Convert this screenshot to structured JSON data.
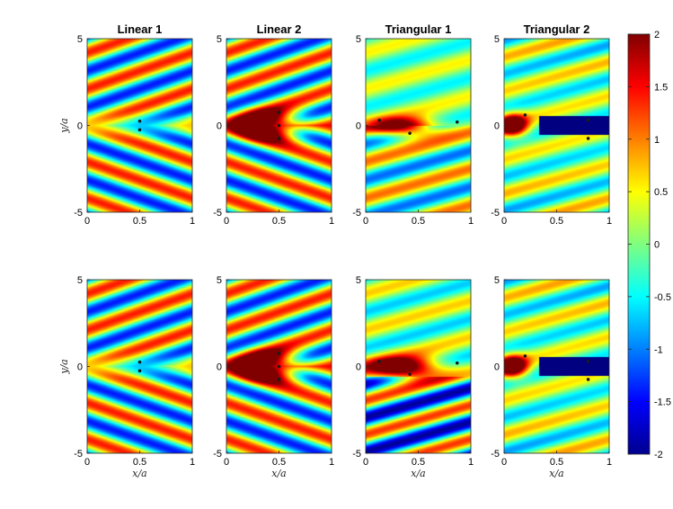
{
  "colors": {
    "colormap": "jet",
    "stop_dark_blue": "#00008f",
    "stop_blue": "#0000ff",
    "stop_cyan": "#00ffff",
    "stop_yellow": "#ffff00",
    "stop_red": "#ff0000",
    "stop_dark_red": "#800000",
    "marker": "#1a1a1a"
  },
  "chart_data": [
    {
      "type": "heatmap",
      "title": "Linear 1",
      "row": 1,
      "xlabel": "",
      "ylabel": "y/a",
      "xlim": [
        0,
        1
      ],
      "ylim": [
        -5,
        5
      ],
      "xticks": [
        "0",
        "0.5",
        "1"
      ],
      "yticks": [
        "-5",
        "0",
        "5"
      ],
      "clim": [
        -2,
        2
      ],
      "points": [
        [
          0.5,
          0.25
        ],
        [
          0.5,
          -0.25
        ]
      ]
    },
    {
      "type": "heatmap",
      "title": "Linear 2",
      "row": 1,
      "xlabel": "",
      "ylabel": "",
      "xlim": [
        0,
        1
      ],
      "ylim": [
        -5,
        5
      ],
      "xticks": [
        "0",
        "0.5",
        "1"
      ],
      "yticks": [
        "-5",
        "0",
        "5"
      ],
      "clim": [
        -2,
        2
      ],
      "points": [
        [
          0.5,
          0.75
        ],
        [
          0.5,
          0
        ],
        [
          0.5,
          -0.75
        ]
      ]
    },
    {
      "type": "heatmap",
      "title": "Triangular 1",
      "row": 1,
      "xlabel": "",
      "ylabel": "",
      "xlim": [
        0,
        1
      ],
      "ylim": [
        -5,
        5
      ],
      "xticks": [
        "0",
        "0.5",
        "1"
      ],
      "yticks": [
        "-5",
        "0",
        "5"
      ],
      "clim": [
        -2,
        2
      ],
      "points": [
        [
          0.13,
          0.3
        ],
        [
          0.42,
          -0.45
        ],
        [
          0.87,
          0.2
        ]
      ]
    },
    {
      "type": "heatmap",
      "title": "Triangular 2",
      "row": 1,
      "xlabel": "",
      "ylabel": "",
      "xlim": [
        0,
        1
      ],
      "ylim": [
        -5,
        5
      ],
      "xticks": [
        "0",
        "0.5",
        "1"
      ],
      "yticks": [
        "-5",
        "0",
        "5"
      ],
      "clim": [
        -2,
        2
      ],
      "points": [
        [
          0.2,
          0.6
        ],
        [
          0.8,
          0.3
        ],
        [
          0.8,
          -0.75
        ]
      ]
    },
    {
      "type": "heatmap",
      "title": "",
      "row": 2,
      "xlabel": "x/a",
      "ylabel": "y/a",
      "xlim": [
        0,
        1
      ],
      "ylim": [
        -5,
        5
      ],
      "xticks": [
        "0",
        "0.5",
        "1"
      ],
      "yticks": [
        "-5",
        "0",
        "5"
      ],
      "clim": [
        -2,
        2
      ],
      "points": [
        [
          0.5,
          0.25
        ],
        [
          0.5,
          -0.25
        ]
      ]
    },
    {
      "type": "heatmap",
      "title": "",
      "row": 2,
      "xlabel": "x/a",
      "ylabel": "",
      "xlim": [
        0,
        1
      ],
      "ylim": [
        -5,
        5
      ],
      "xticks": [
        "0",
        "0.5",
        "1"
      ],
      "yticks": [
        "-5",
        "0",
        "5"
      ],
      "clim": [
        -2,
        2
      ],
      "points": [
        [
          0.5,
          0.75
        ],
        [
          0.5,
          0
        ],
        [
          0.5,
          -0.75
        ]
      ]
    },
    {
      "type": "heatmap",
      "title": "",
      "row": 2,
      "xlabel": "x/a",
      "ylabel": "",
      "xlim": [
        0,
        1
      ],
      "ylim": [
        -5,
        5
      ],
      "xticks": [
        "0",
        "0.5",
        "1"
      ],
      "yticks": [
        "-5",
        "0",
        "5"
      ],
      "clim": [
        -2,
        2
      ],
      "points": [
        [
          0.13,
          0.3
        ],
        [
          0.42,
          -0.45
        ],
        [
          0.87,
          0.2
        ]
      ]
    },
    {
      "type": "heatmap",
      "title": "",
      "row": 2,
      "xlabel": "x/a",
      "ylabel": "",
      "xlim": [
        0,
        1
      ],
      "ylim": [
        -5,
        5
      ],
      "xticks": [
        "0",
        "0.5",
        "1"
      ],
      "yticks": [
        "-5",
        "0",
        "5"
      ],
      "clim": [
        -2,
        2
      ],
      "points": [
        [
          0.2,
          0.6
        ],
        [
          0.8,
          0.3
        ],
        [
          0.8,
          -0.75
        ]
      ]
    }
  ],
  "colorbar": {
    "ticks": [
      "2",
      "1.5",
      "1",
      "0.5",
      "0",
      "-0.5",
      "-1",
      "-1.5",
      "-2"
    ],
    "values": [
      2,
      1.5,
      1,
      0.5,
      0,
      -0.5,
      -1,
      -1.5,
      -2
    ],
    "range": [
      -2,
      2
    ]
  }
}
